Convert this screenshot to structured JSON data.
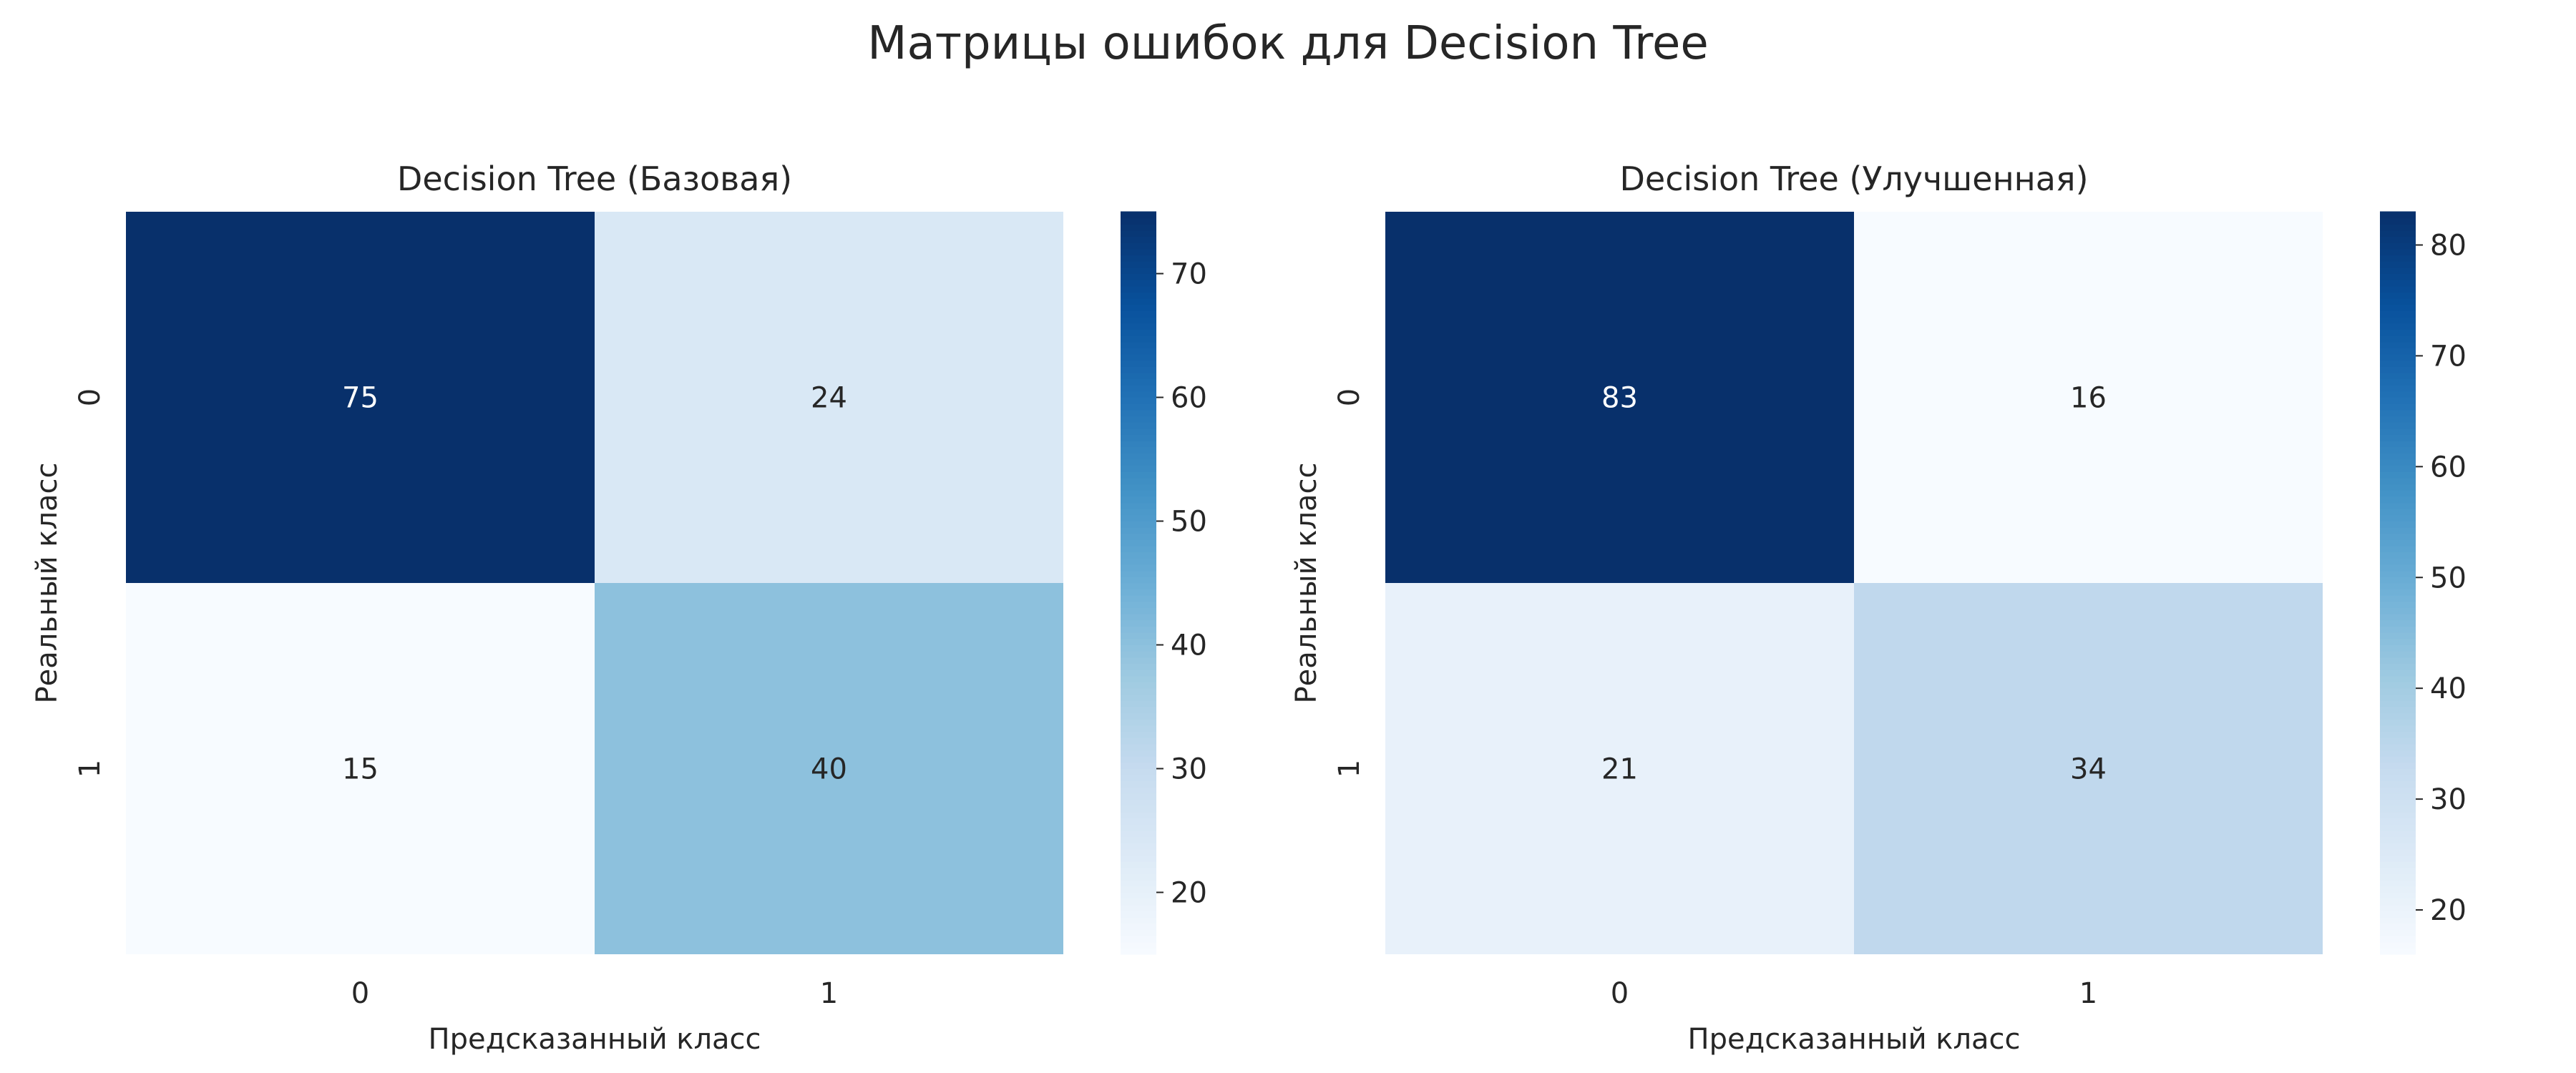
{
  "figure": {
    "suptitle": "Матрицы ошибок для Decision Tree"
  },
  "chart_data": [
    {
      "type": "heatmap",
      "title": "Decision Tree (Базовая)",
      "xlabel": "Предсказанный класс",
      "ylabel": "Реальный класс",
      "x_categories": [
        "0",
        "1"
      ],
      "y_categories": [
        "0",
        "1"
      ],
      "values": [
        [
          75,
          24
        ],
        [
          15,
          40
        ]
      ],
      "colormap": "Blues",
      "colorbar": {
        "min": 15,
        "max": 75,
        "ticks": [
          20,
          30,
          40,
          50,
          60,
          70
        ]
      }
    },
    {
      "type": "heatmap",
      "title": "Decision Tree (Улучшенная)",
      "xlabel": "Предсказанный класс",
      "ylabel": "Реальный класс",
      "x_categories": [
        "0",
        "1"
      ],
      "y_categories": [
        "0",
        "1"
      ],
      "values": [
        [
          83,
          16
        ],
        [
          21,
          34
        ]
      ],
      "colormap": "Blues",
      "colorbar": {
        "min": 16,
        "max": 83,
        "ticks": [
          20,
          30,
          40,
          50,
          60,
          70,
          80
        ]
      }
    }
  ],
  "colors": {
    "blues_stops": [
      "#f7fbff",
      "#deebf7",
      "#c6dbef",
      "#9ecae1",
      "#6baed6",
      "#4292c6",
      "#2171b5",
      "#08519c",
      "#08306b"
    ],
    "text_dark": "#262626",
    "text_light": "#ffffff"
  }
}
